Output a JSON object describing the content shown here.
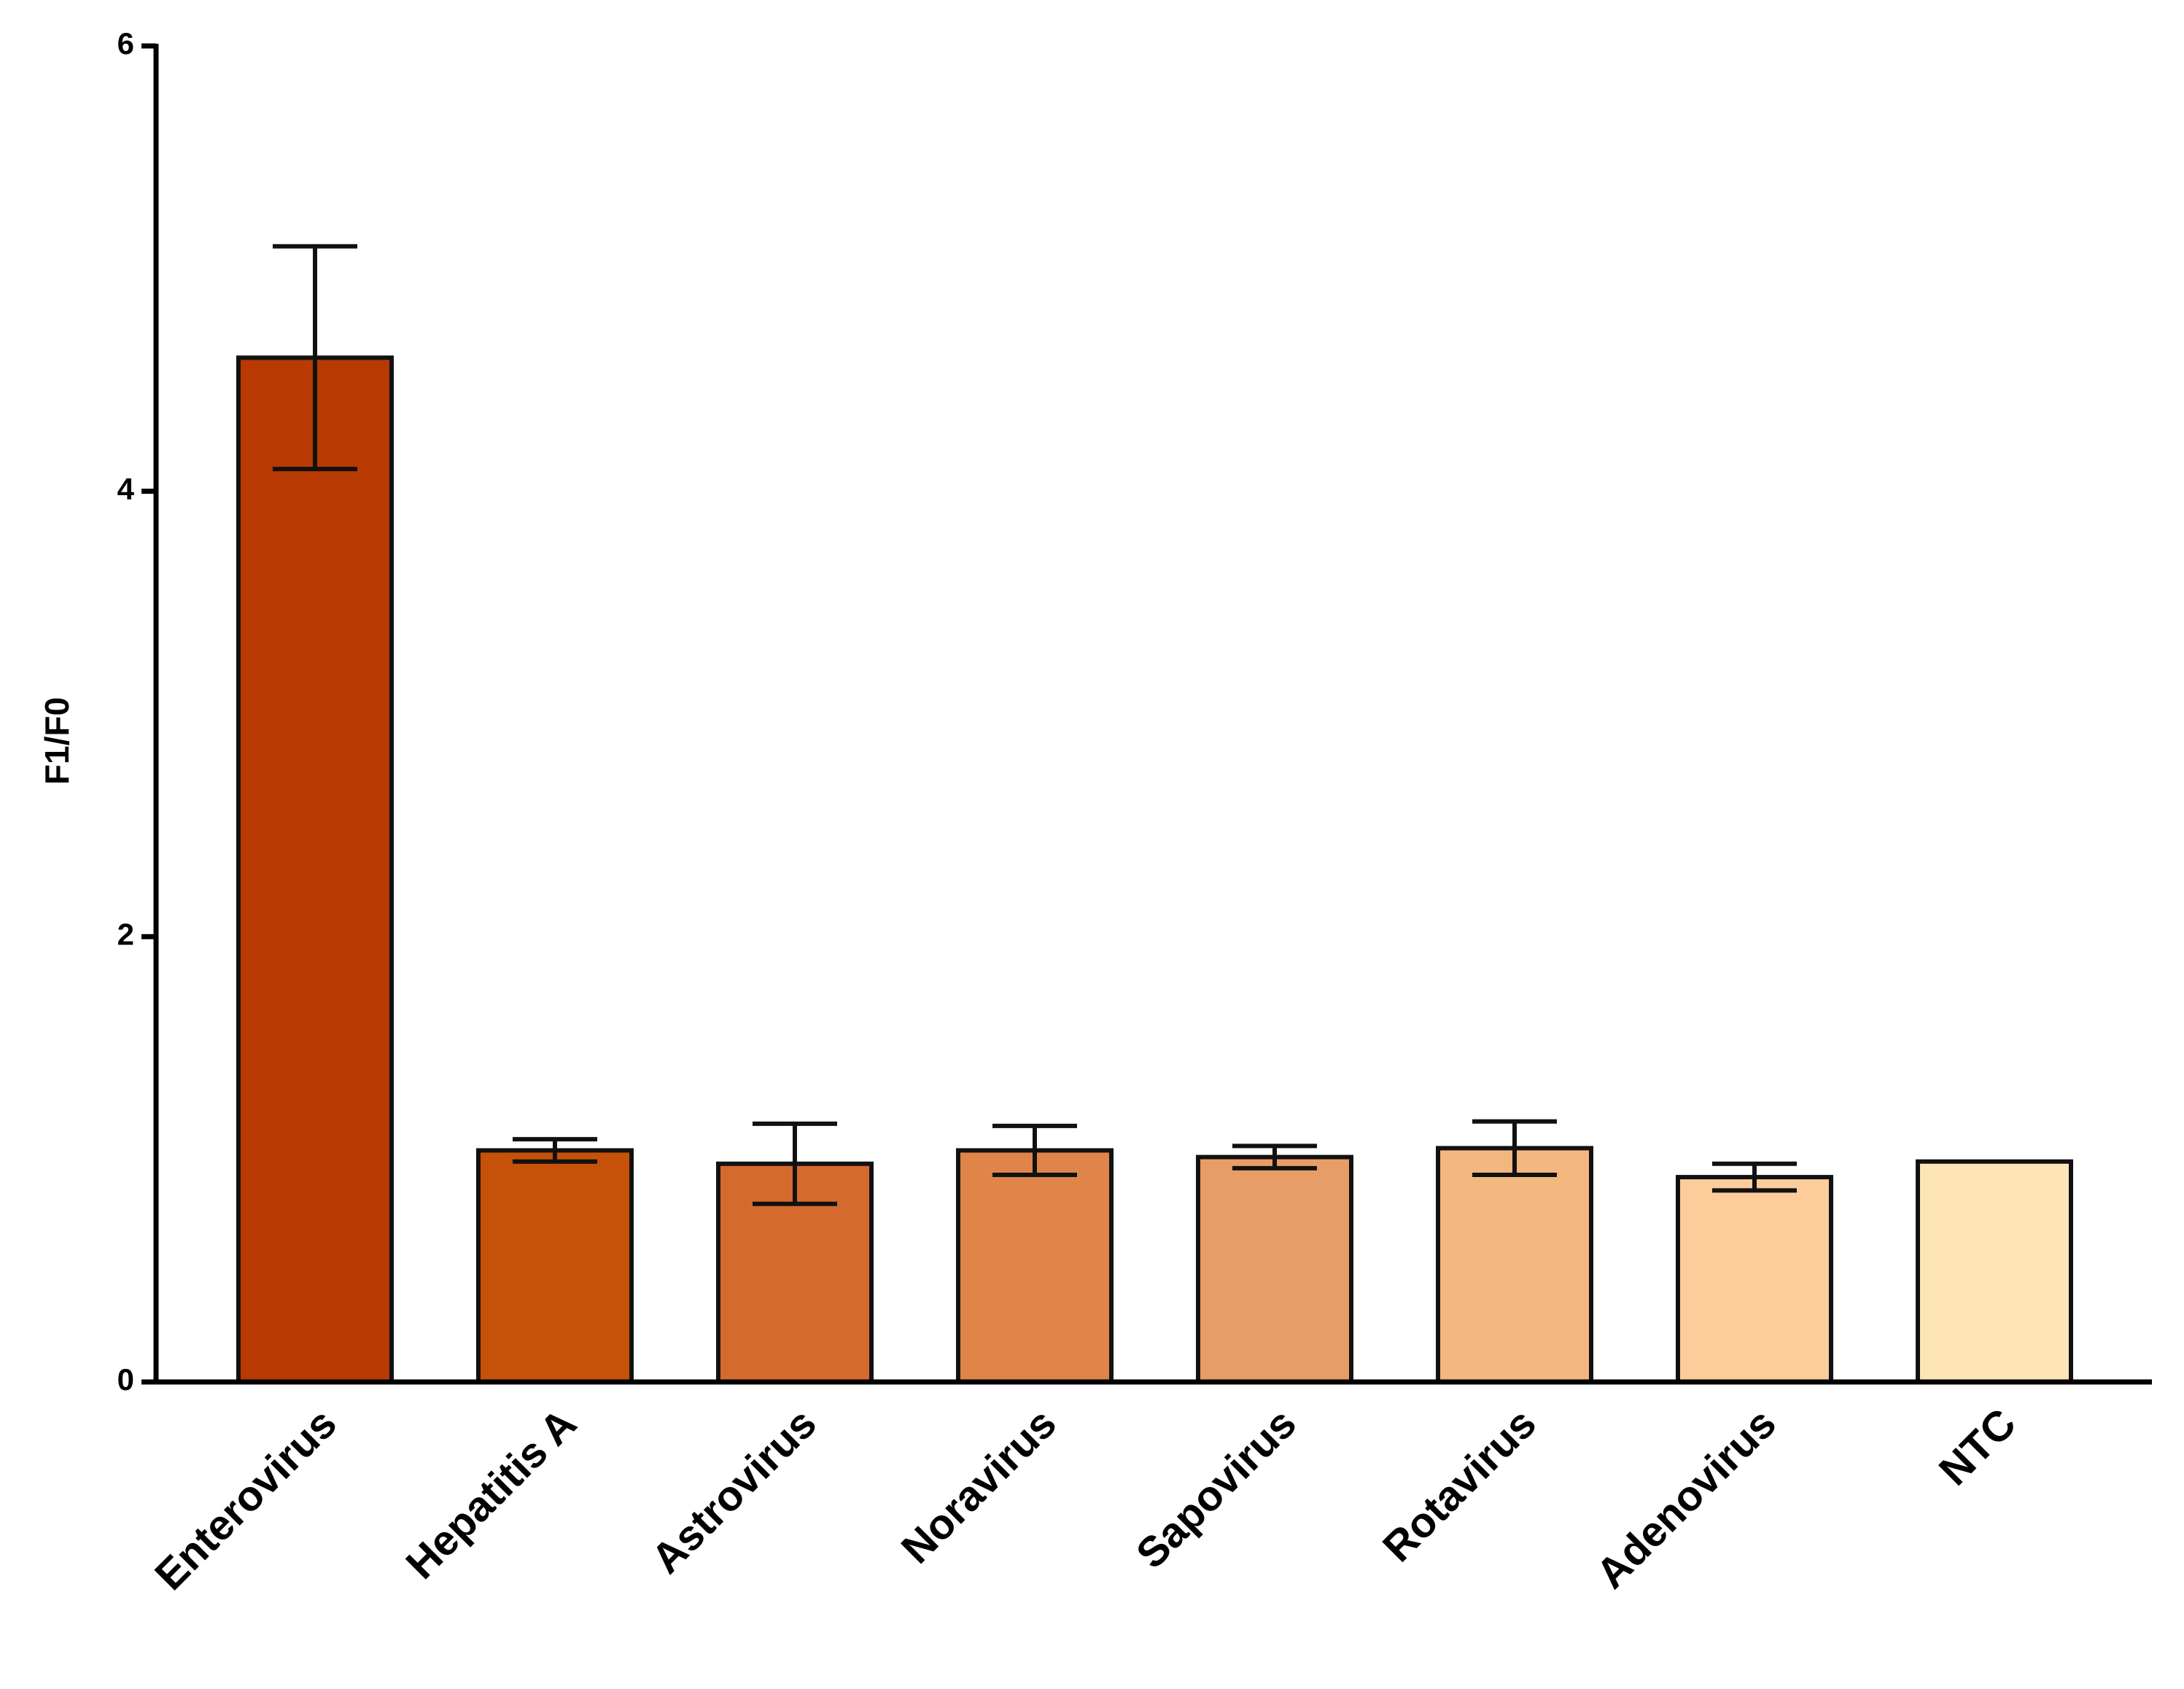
{
  "chart_data": {
    "type": "bar",
    "y_label": "F1/F0",
    "categories": [
      "Enterovirus",
      "Hepatitis A",
      "Astrovirus",
      "Noravirus",
      "Sapovirus",
      "Rotavirus",
      "Adenovirus",
      "NTC"
    ],
    "values": [
      4.6,
      1.04,
      0.98,
      1.04,
      1.01,
      1.05,
      0.92,
      0.99
    ],
    "errors": [
      0.5,
      0.05,
      0.18,
      0.11,
      0.05,
      0.12,
      0.06,
      null
    ],
    "colors": [
      "#b83a02",
      "#c65209",
      "#d56a2e",
      "#df854a",
      "#e99d66",
      "#f2b67f",
      "#fccd9b",
      "#fde5b6"
    ],
    "ylim": [
      0,
      6
    ],
    "yticks": [
      0,
      2,
      4,
      6
    ],
    "grid": false
  }
}
